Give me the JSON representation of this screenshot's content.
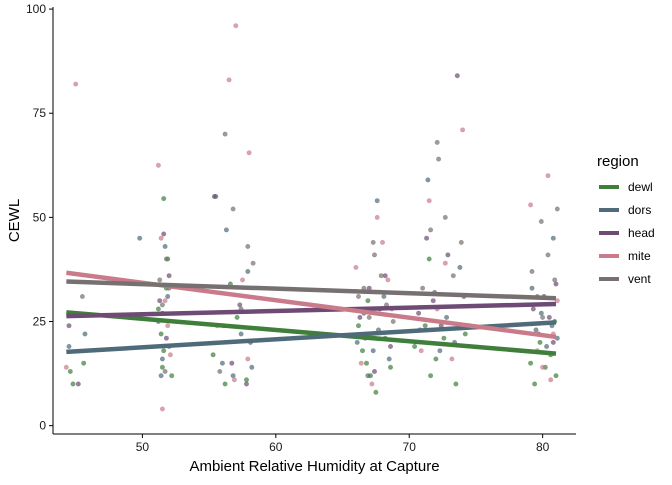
{
  "chart_data": {
    "type": "scatter",
    "title": "",
    "xlabel": "Ambient Relative Humidity at Capture",
    "ylabel": "CEWL",
    "xlim": [
      43.3,
      82.5
    ],
    "ylim": [
      -2,
      100.5
    ],
    "x_ticks": [
      50,
      60,
      70,
      80
    ],
    "y_ticks": [
      0,
      25,
      50,
      75,
      100
    ],
    "x_tick_labels": [
      "50",
      "60",
      "70",
      "80"
    ],
    "y_tick_labels": [
      "0",
      "25",
      "50",
      "75",
      "100"
    ],
    "grid": false,
    "legend": {
      "title": "region",
      "position": "right",
      "entries": [
        {
          "label": "dewl",
          "color": "#3f7f3b"
        },
        {
          "label": "dors",
          "color": "#4f6b7a"
        },
        {
          "label": "head",
          "color": "#6e4b75"
        },
        {
          "label": "mite",
          "color": "#c97b8a"
        },
        {
          "label": "vent",
          "color": "#767170"
        }
      ]
    },
    "series": [
      {
        "name": "dewl",
        "color": "#3f7f3b",
        "trend": {
          "x": [
            44.3,
            81
          ],
          "y": [
            27.2,
            17.3
          ]
        },
        "points": [
          [
            44.6,
            13
          ],
          [
            44.8,
            10
          ],
          [
            45.6,
            15
          ],
          [
            51.2,
            28
          ],
          [
            51.4,
            22
          ],
          [
            51.6,
            18
          ],
          [
            51.6,
            54.5
          ],
          [
            51.8,
            33
          ],
          [
            51.9,
            40
          ],
          [
            52.2,
            12
          ],
          [
            51.5,
            14
          ],
          [
            55.3,
            17
          ],
          [
            56.2,
            10
          ],
          [
            57.1,
            26
          ],
          [
            57.8,
            11
          ],
          [
            56.6,
            34
          ],
          [
            66.2,
            24
          ],
          [
            66.5,
            18
          ],
          [
            66.8,
            15
          ],
          [
            67.1,
            12
          ],
          [
            66.9,
            30
          ],
          [
            67.5,
            8
          ],
          [
            68.2,
            21
          ],
          [
            68.6,
            14
          ],
          [
            70.4,
            19
          ],
          [
            71.2,
            24
          ],
          [
            71.6,
            12
          ],
          [
            72.0,
            16
          ],
          [
            72.6,
            21
          ],
          [
            73.5,
            10
          ],
          [
            74.2,
            22
          ],
          [
            71.5,
            40
          ],
          [
            79.1,
            15
          ],
          [
            79.4,
            10
          ],
          [
            79.8,
            20
          ],
          [
            80.2,
            14
          ],
          [
            80.6,
            17
          ],
          [
            81.0,
            12
          ],
          [
            80.9,
            25
          ]
        ]
      },
      {
        "name": "dors",
        "color": "#4f6b7a",
        "trend": {
          "x": [
            44.3,
            81
          ],
          "y": [
            17.7,
            24.8
          ]
        },
        "points": [
          [
            44.5,
            19
          ],
          [
            45.7,
            22
          ],
          [
            49.8,
            45
          ],
          [
            51.2,
            25
          ],
          [
            51.5,
            16
          ],
          [
            51.7,
            43
          ],
          [
            51.9,
            31
          ],
          [
            52.0,
            19
          ],
          [
            51.4,
            12
          ],
          [
            55.5,
            55
          ],
          [
            56.0,
            15
          ],
          [
            56.8,
            12
          ],
          [
            57.4,
            22
          ],
          [
            57.9,
            37
          ],
          [
            58.2,
            14
          ],
          [
            56.3,
            47
          ],
          [
            66.1,
            20
          ],
          [
            66.6,
            27
          ],
          [
            66.9,
            12
          ],
          [
            67.3,
            18
          ],
          [
            67.7,
            23
          ],
          [
            68.1,
            31
          ],
          [
            68.5,
            16
          ],
          [
            67.6,
            54
          ],
          [
            70.8,
            23
          ],
          [
            71.4,
            59
          ],
          [
            71.9,
            32
          ],
          [
            72.3,
            18
          ],
          [
            72.8,
            26
          ],
          [
            73.4,
            20
          ],
          [
            73.8,
            38
          ],
          [
            79.2,
            33
          ],
          [
            79.5,
            23
          ],
          [
            79.9,
            27
          ],
          [
            80.3,
            19
          ],
          [
            80.7,
            24
          ],
          [
            81.1,
            21
          ],
          [
            80.8,
            45
          ]
        ]
      },
      {
        "name": "head",
        "color": "#6e4b75",
        "trend": {
          "x": [
            44.3,
            81
          ],
          "y": [
            26.3,
            29.2
          ]
        },
        "points": [
          [
            44.5,
            24
          ],
          [
            45.2,
            10
          ],
          [
            51.3,
            30
          ],
          [
            51.5,
            27
          ],
          [
            51.8,
            21
          ],
          [
            52.0,
            36
          ],
          [
            51.6,
            46
          ],
          [
            55.4,
            55
          ],
          [
            56.1,
            24
          ],
          [
            56.7,
            15
          ],
          [
            57.3,
            29
          ],
          [
            57.8,
            10
          ],
          [
            58.1,
            20
          ],
          [
            66.3,
            26
          ],
          [
            66.7,
            21
          ],
          [
            67.0,
            33
          ],
          [
            67.4,
            13
          ],
          [
            67.8,
            28
          ],
          [
            68.2,
            36
          ],
          [
            68.6,
            19
          ],
          [
            70.7,
            27
          ],
          [
            71.3,
            45
          ],
          [
            71.8,
            30
          ],
          [
            72.4,
            24
          ],
          [
            72.9,
            41
          ],
          [
            73.6,
            84
          ],
          [
            74.1,
            31
          ],
          [
            79.3,
            28
          ],
          [
            79.7,
            22
          ],
          [
            80.1,
            31
          ],
          [
            80.5,
            26
          ],
          [
            80.8,
            20
          ],
          [
            81.0,
            34
          ]
        ]
      },
      {
        "name": "mite",
        "color": "#c97b8a",
        "trend": {
          "x": [
            44.3,
            81
          ],
          "y": [
            36.7,
            21.3
          ]
        },
        "points": [
          [
            44.3,
            14
          ],
          [
            45.0,
            82
          ],
          [
            51.2,
            62.5
          ],
          [
            51.4,
            45
          ],
          [
            51.7,
            30
          ],
          [
            51.9,
            24
          ],
          [
            52.1,
            17
          ],
          [
            51.5,
            4
          ],
          [
            55.6,
            24
          ],
          [
            56.5,
            83
          ],
          [
            57.0,
            96
          ],
          [
            57.5,
            35
          ],
          [
            57.9,
            16
          ],
          [
            58.0,
            65.5
          ],
          [
            56.9,
            11
          ],
          [
            66.0,
            38
          ],
          [
            66.4,
            15
          ],
          [
            66.8,
            22
          ],
          [
            67.2,
            10
          ],
          [
            67.6,
            50
          ],
          [
            68.0,
            44
          ],
          [
            68.4,
            35
          ],
          [
            68.7,
            28
          ],
          [
            70.9,
            18
          ],
          [
            71.5,
            54
          ],
          [
            72.1,
            28
          ],
          [
            72.7,
            39
          ],
          [
            73.2,
            16
          ],
          [
            74.0,
            71
          ],
          [
            74.5,
            24
          ],
          [
            79.1,
            53
          ],
          [
            79.6,
            18
          ],
          [
            80.0,
            14
          ],
          [
            80.4,
            60
          ],
          [
            80.8,
            22
          ],
          [
            81.1,
            30
          ],
          [
            80.6,
            11
          ]
        ]
      },
      {
        "name": "vent",
        "color": "#767170",
        "trend": {
          "x": [
            44.3,
            81
          ],
          "y": [
            34.6,
            30.6
          ]
        },
        "points": [
          [
            44.7,
            27
          ],
          [
            45.5,
            31
          ],
          [
            51.3,
            35
          ],
          [
            51.5,
            29
          ],
          [
            51.8,
            40
          ],
          [
            52.0,
            33
          ],
          [
            51.7,
            13
          ],
          [
            56.2,
            70
          ],
          [
            56.8,
            52
          ],
          [
            57.4,
            28
          ],
          [
            57.9,
            43
          ],
          [
            58.3,
            39
          ],
          [
            55.8,
            13
          ],
          [
            66.2,
            31
          ],
          [
            66.6,
            33
          ],
          [
            67.0,
            26
          ],
          [
            67.4,
            41
          ],
          [
            67.9,
            36
          ],
          [
            68.3,
            29
          ],
          [
            68.8,
            25
          ],
          [
            67.3,
            44
          ],
          [
            71.0,
            33
          ],
          [
            71.6,
            47
          ],
          [
            72.2,
            64
          ],
          [
            72.7,
            50
          ],
          [
            73.3,
            36
          ],
          [
            73.9,
            44
          ],
          [
            72.1,
            68
          ],
          [
            79.2,
            37
          ],
          [
            79.6,
            31
          ],
          [
            80.0,
            26
          ],
          [
            80.4,
            41
          ],
          [
            80.9,
            35
          ],
          [
            81.1,
            52
          ],
          [
            79.9,
            49
          ]
        ]
      }
    ]
  }
}
